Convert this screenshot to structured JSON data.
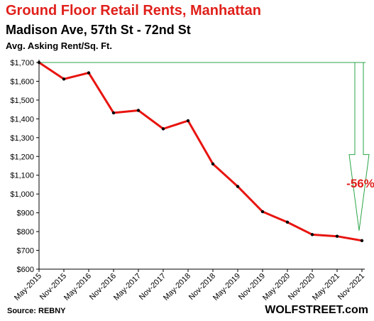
{
  "chart_data": {
    "type": "line",
    "title": "Ground  Floor Retail Rents, Manhattan",
    "subtitle": "Madison Ave, 57th St - 72nd St",
    "ylabel": "Avg. Asking Rent/Sq. Ft.",
    "categories": [
      "May-2015",
      "Nov-2015",
      "May-2016",
      "Nov-2016",
      "May-2017",
      "Nov-2017",
      "May-2018",
      "Nov-2018",
      "May-2019",
      "Nov-2019",
      "May-2020",
      "Nov-2020",
      "May-2021",
      "Nov-2021"
    ],
    "values": [
      1700,
      1612,
      1645,
      1432,
      1445,
      1347,
      1390,
      1160,
      1040,
      906,
      850,
      784,
      775,
      752
    ],
    "ylim": [
      600,
      1700
    ],
    "yticks": [
      "$600",
      "$700",
      "$800",
      "$900",
      "$1,000",
      "$1,100",
      "$1,200",
      "$1,300",
      "$1,400",
      "$1,500",
      "$1,600",
      "$1,700"
    ],
    "annotation": "-56%",
    "line_color": "#e8140f",
    "marker_color": "#000000",
    "arrow_color": "#2aa548",
    "grid": false,
    "source": "Source: REBNY",
    "brand": "WOLFSTREET.com"
  }
}
